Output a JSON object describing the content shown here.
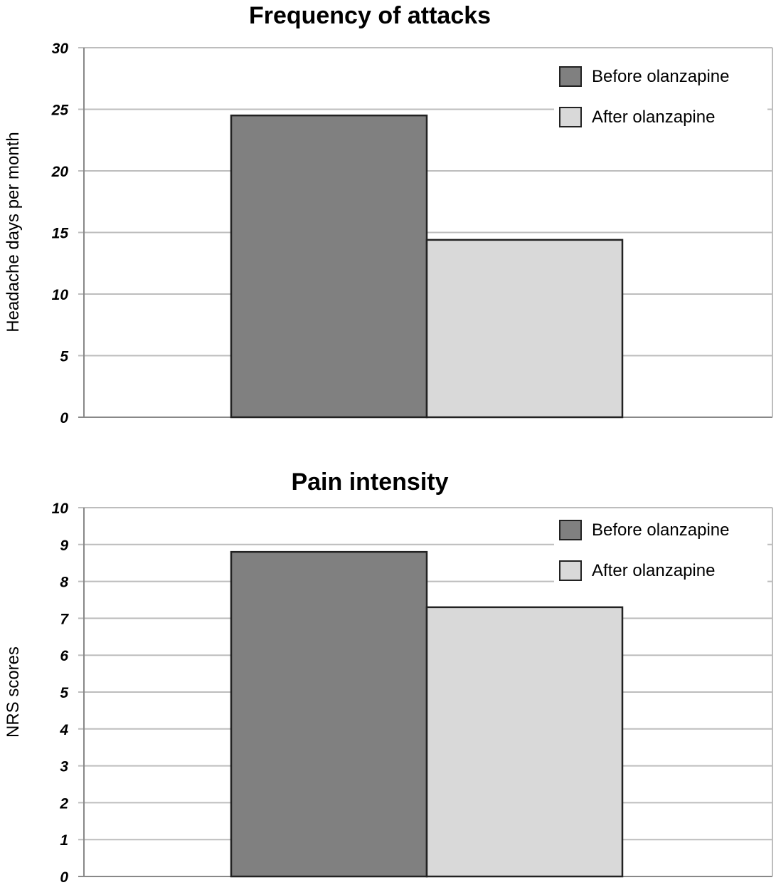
{
  "chart_data": [
    {
      "type": "bar",
      "title": "Frequency of attacks",
      "ylabel": "Headache days per month",
      "xlabel": "",
      "ylim": [
        0,
        30
      ],
      "yticks": [
        0,
        5,
        10,
        15,
        20,
        25,
        30
      ],
      "grid": true,
      "legend_position": "top-right",
      "series": [
        {
          "name": "Before olanzapine",
          "values": [
            24.5
          ],
          "color": "#808080"
        },
        {
          "name": "After olanzapine",
          "values": [
            14.4
          ],
          "color": "#d9d9d9"
        }
      ]
    },
    {
      "type": "bar",
      "title": "Pain intensity",
      "ylabel": "NRS scores",
      "xlabel": "",
      "ylim": [
        0,
        10
      ],
      "yticks": [
        0,
        1,
        2,
        3,
        4,
        5,
        6,
        7,
        8,
        9,
        10
      ],
      "grid": true,
      "legend_position": "top-right",
      "series": [
        {
          "name": "Before olanzapine",
          "values": [
            8.8
          ],
          "color": "#808080"
        },
        {
          "name": "After olanzapine",
          "values": [
            7.3
          ],
          "color": "#d9d9d9"
        }
      ]
    }
  ]
}
